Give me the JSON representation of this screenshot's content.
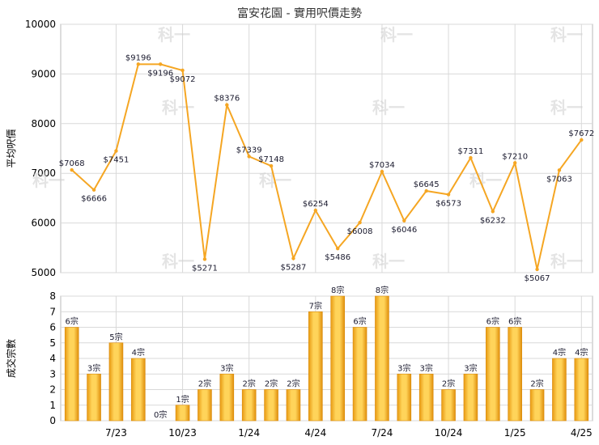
{
  "chart_data": [
    {
      "type": "line",
      "title": "富安花園 - 實用呎價走勢",
      "ylabel": "平均呎價",
      "ylim": [
        5000,
        10000
      ],
      "yticks": [
        5000,
        6000,
        7000,
        8000,
        9000,
        10000
      ],
      "grid": true,
      "color": "#f5a623",
      "values": [
        7068,
        6666,
        7451,
        9196,
        9196,
        9072,
        5271,
        8376,
        7339,
        7148,
        5287,
        6254,
        5486,
        6008,
        7034,
        6046,
        6645,
        6573,
        7311,
        6232,
        7210,
        5067,
        7063,
        7672
      ],
      "labels": [
        "$7068",
        "$6666",
        "$7451",
        "$9196",
        "$9196",
        "$9072",
        "$5271",
        "$8376",
        "$7339",
        "$7148",
        "$5287",
        "$6254",
        "$5486",
        "$6008",
        "$7034",
        "$6046",
        "$6645",
        "$6573",
        "$7311",
        "$6232",
        "$7210",
        "$5067",
        "$7063",
        "$7672"
      ]
    },
    {
      "type": "bar",
      "ylabel": "成交宗數",
      "ylim": [
        0,
        8
      ],
      "yticks": [
        0,
        1,
        2,
        3,
        4,
        5,
        6,
        7,
        8
      ],
      "grid": true,
      "color": "#f5a623",
      "values": [
        6,
        3,
        5,
        4,
        0,
        1,
        2,
        3,
        2,
        2,
        2,
        7,
        8,
        6,
        8,
        3,
        3,
        2,
        3,
        6,
        6,
        2,
        4,
        4
      ],
      "labels": [
        "6宗",
        "3宗",
        "5宗",
        "4宗",
        "0宗",
        "1宗",
        "2宗",
        "3宗",
        "2宗",
        "2宗",
        "2宗",
        "7宗",
        "8宗",
        "6宗",
        "8宗",
        "3宗",
        "3宗",
        "2宗",
        "3宗",
        "6宗",
        "6宗",
        "2宗",
        "4宗",
        "4宗"
      ],
      "xticks": [
        {
          "label": "7/23",
          "index": 2
        },
        {
          "label": "10/23",
          "index": 5
        },
        {
          "label": "1/24",
          "index": 8
        },
        {
          "label": "4/24",
          "index": 11
        },
        {
          "label": "7/24",
          "index": 14
        },
        {
          "label": "10/24",
          "index": 17
        },
        {
          "label": "1/25",
          "index": 20
        },
        {
          "label": "4/25",
          "index": 23
        }
      ]
    }
  ],
  "watermark": "科一"
}
